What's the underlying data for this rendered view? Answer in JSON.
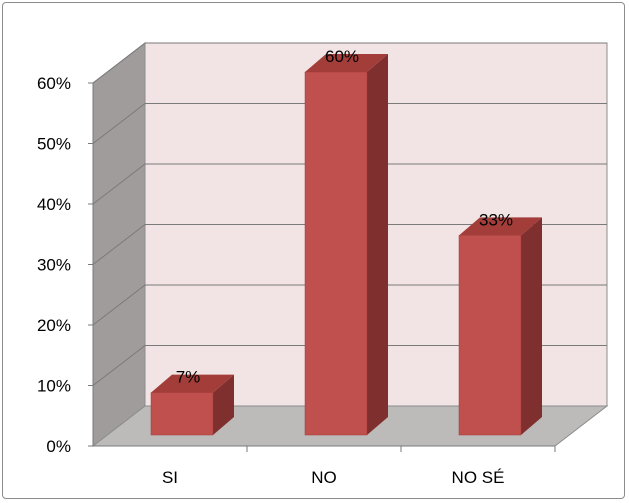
{
  "chart_data": {
    "type": "bar",
    "categories": [
      "SI",
      "NO",
      "NO SÉ"
    ],
    "values": [
      7,
      60,
      33
    ],
    "data_labels": [
      "7%",
      "60%",
      "33%"
    ],
    "ylim": [
      0,
      60
    ],
    "yticks": [
      "0%",
      "10%",
      "20%",
      "30%",
      "40%",
      "50%",
      "60%"
    ],
    "grid": true,
    "style": "3d-column",
    "colors": {
      "bar_front": "#c0504d",
      "bar_top": "#a23d3a",
      "bar_side": "#7f2f2d",
      "back_wall": "#f2e4e4",
      "side_wall": "#a09c9c",
      "floor": "#bdbaba"
    }
  }
}
